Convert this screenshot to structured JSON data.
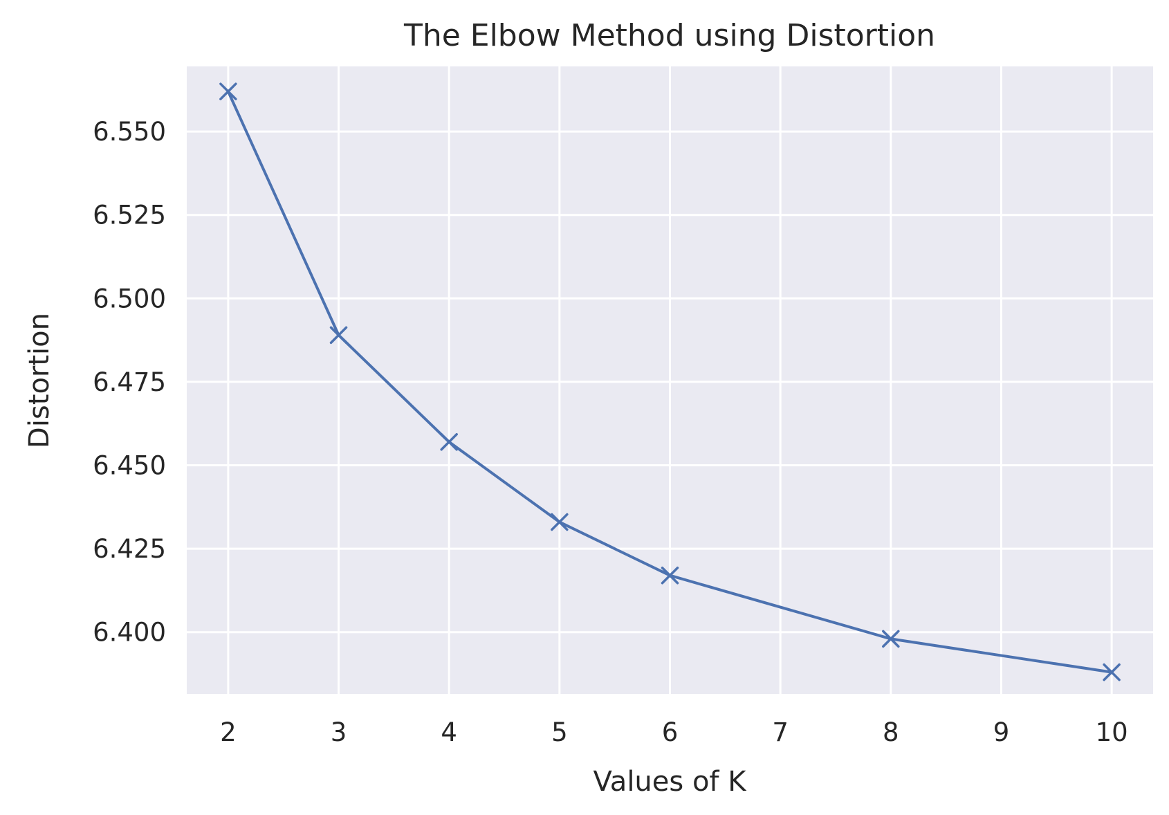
{
  "chart_data": {
    "type": "line",
    "title": "The Elbow Method using Distortion",
    "xlabel": "Values of K",
    "ylabel": "Distortion",
    "xlim": [
      1.625,
      10.375
    ],
    "ylim": [
      6.3815,
      6.5695
    ],
    "xticks": [
      2,
      3,
      4,
      5,
      6,
      7,
      8,
      9,
      10
    ],
    "xtick_labels": [
      "2",
      "3",
      "4",
      "5",
      "6",
      "7",
      "8",
      "9",
      "10"
    ],
    "yticks": [
      6.4,
      6.425,
      6.45,
      6.475,
      6.5,
      6.525,
      6.55
    ],
    "ytick_labels": [
      "6.400",
      "6.425",
      "6.450",
      "6.475",
      "6.500",
      "6.525",
      "6.550"
    ],
    "grid": true,
    "series": [
      {
        "x": [
          2,
          3,
          4,
          5,
          6,
          8,
          10
        ],
        "y": [
          6.562,
          6.489,
          6.457,
          6.433,
          6.417,
          6.398,
          6.388
        ],
        "marker": "x"
      }
    ],
    "colors": {
      "plot_background": "#eaeaf2",
      "grid": "#ffffff",
      "line": "#4c72b0",
      "text": "#262626"
    }
  }
}
